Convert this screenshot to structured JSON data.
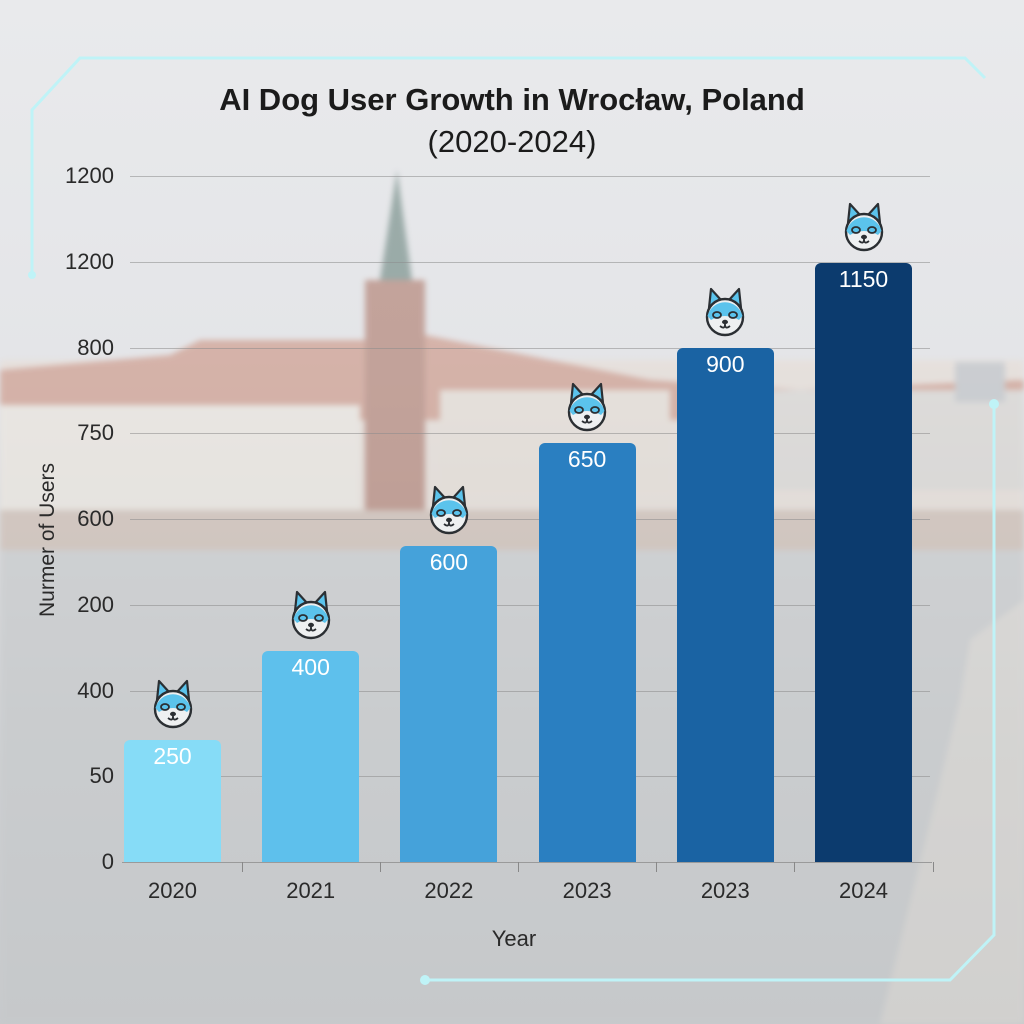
{
  "chart_data": {
    "type": "bar",
    "title": "AI Dog User Growth in Wrocław, Poland",
    "subtitle": "(2020-2024)",
    "xlabel": "Year",
    "ylabel": "Nurmer of Users",
    "categories": [
      "2020",
      "2021",
      "2022",
      "2023",
      "2023",
      "2024"
    ],
    "values": [
      250,
      400,
      600,
      650,
      900,
      1150
    ],
    "axis_fraction": [
      0.178,
      0.308,
      0.46,
      0.611,
      0.749,
      0.873
    ],
    "ytick_labels": [
      "0",
      "50",
      "400",
      "200",
      "600",
      "750",
      "800",
      "1200",
      "1200"
    ],
    "ylim": [
      0,
      1200
    ],
    "grid": true,
    "legend": "none",
    "bar_colors": [
      "#86dcf7",
      "#5ec0ec",
      "#45a2da",
      "#2a7fc1",
      "#1a63a3",
      "#0c3b6e"
    ],
    "marker_icon": "dog-face-icon"
  },
  "colors": {
    "frame_accent": "#bff3f7",
    "text": "#1b1b1b",
    "dog_fill": "#5bc3ec",
    "dog_outline": "#2b2f33"
  }
}
